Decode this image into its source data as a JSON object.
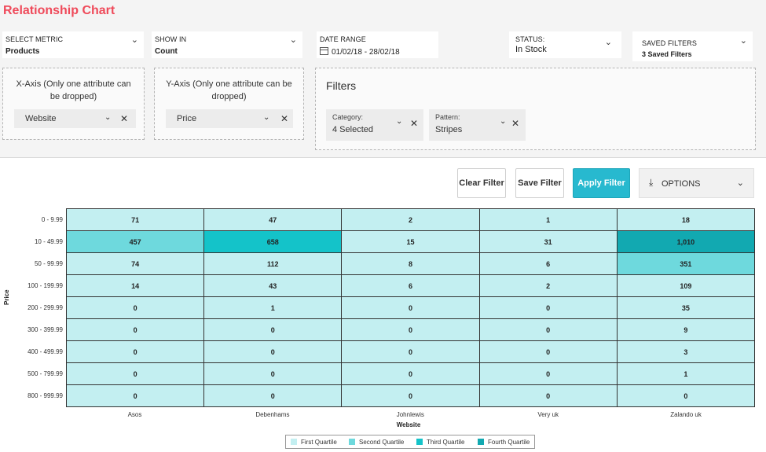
{
  "title": "Relationship Chart",
  "controls": {
    "metric": {
      "label": "SELECT METRIC",
      "value": "Products"
    },
    "show_in": {
      "label": "SHOW IN",
      "value": "Count"
    },
    "date_range": {
      "label": "DATE RANGE",
      "value": "01/02/18 - 28/02/18"
    },
    "status": {
      "label": "STATUS:",
      "value": "In Stock"
    },
    "saved_filters": {
      "label": "SAVED FILTERS",
      "value": "3 Saved Filters"
    }
  },
  "x_axis_box": {
    "title": "X-Axis (Only one attribute can be dropped)",
    "value": "Website"
  },
  "y_axis_box": {
    "title": "Y-Axis (Only one attribute can be dropped)",
    "value": "Price"
  },
  "filters": {
    "title": "Filters",
    "category": {
      "label": "Category:",
      "value": "4 Selected"
    },
    "pattern": {
      "label": "Pattern:",
      "value": "Stripes"
    }
  },
  "toolbar": {
    "clear": "Clear Filter",
    "save": "Save Filter",
    "apply": "Apply Filter",
    "options": "OPTIONS"
  },
  "icons": {
    "chevron": "chevron-down-icon",
    "close": "close-icon",
    "calendar": "calendar-icon",
    "download": "download-icon"
  },
  "colors": {
    "title": "#ef4a5a",
    "first_quartile": "#c3eff1",
    "second_quartile": "#6ed9dd",
    "third_quartile": "#14c3c9",
    "fourth_quartile": "#12a9b1",
    "primary_button": "#27b9cf"
  },
  "chart_data": {
    "type": "heatmap",
    "xlabel": "Website",
    "ylabel": "Price",
    "x": [
      "Asos",
      "Debenhams",
      "Johnlewis",
      "Very uk",
      "Zalando uk"
    ],
    "y": [
      "0 - 9.99",
      "10 - 49.99",
      "50 - 99.99",
      "100 - 199.99",
      "200 - 299.99",
      "300 - 399.99",
      "400 - 499.99",
      "500 - 799.99",
      "800 - 999.99"
    ],
    "values": [
      [
        "71",
        "47",
        "2",
        "1",
        "18"
      ],
      [
        "457",
        "658",
        "15",
        "31",
        "1,010"
      ],
      [
        "74",
        "112",
        "8",
        "6",
        "351"
      ],
      [
        "14",
        "43",
        "6",
        "2",
        "109"
      ],
      [
        "0",
        "1",
        "0",
        "0",
        "35"
      ],
      [
        "0",
        "0",
        "0",
        "0",
        "9"
      ],
      [
        "0",
        "0",
        "0",
        "0",
        "3"
      ],
      [
        "0",
        "0",
        "0",
        "0",
        "1"
      ],
      [
        "0",
        "0",
        "0",
        "0",
        "0"
      ]
    ],
    "quartiles": [
      [
        1,
        1,
        1,
        1,
        1
      ],
      [
        2,
        3,
        1,
        1,
        4
      ],
      [
        1,
        1,
        1,
        1,
        2
      ],
      [
        1,
        1,
        1,
        1,
        1
      ],
      [
        1,
        1,
        1,
        1,
        1
      ],
      [
        1,
        1,
        1,
        1,
        1
      ],
      [
        1,
        1,
        1,
        1,
        1
      ],
      [
        1,
        1,
        1,
        1,
        1
      ],
      [
        1,
        1,
        1,
        1,
        1
      ]
    ],
    "legend": [
      "First Quartile",
      "Second Quartile",
      "Third Quartile",
      "Fourth Quartile"
    ],
    "legend_position": "bottom-center"
  }
}
